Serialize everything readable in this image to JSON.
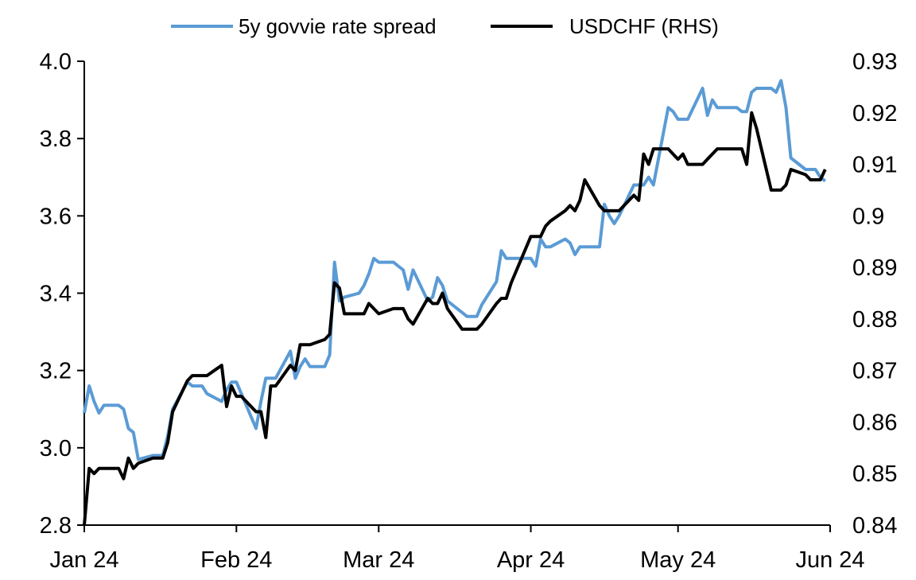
{
  "chart_data": {
    "type": "line",
    "title": "",
    "xlabel": "",
    "ylabel": "",
    "y2label": "",
    "grid": false,
    "legend_placement": "top-center",
    "x_tick_labels": [
      "Jan 24",
      "Feb 24",
      "Mar 24",
      "Apr 24",
      "May 24",
      "Jun 24"
    ],
    "x_tick_dates": [
      "2024-01-01",
      "2024-02-01",
      "2024-03-01",
      "2024-04-01",
      "2024-05-01",
      "2024-06-01"
    ],
    "xlim": [
      "2024-01-01",
      "2024-06-01"
    ],
    "ylim": [
      2.8,
      4.0
    ],
    "y_tick_labels": [
      "2.8",
      "3.0",
      "3.2",
      "3.4",
      "3.6",
      "3.8",
      "4.0"
    ],
    "y2lim": [
      0.84,
      0.93
    ],
    "y2_tick_labels": [
      "0.84",
      "0.85",
      "0.86",
      "0.87",
      "0.88",
      "0.89",
      "0.9",
      "0.91",
      "0.92",
      "0.93"
    ],
    "series": [
      {
        "name": "5y govvie rate spread",
        "axis": "left",
        "color": "#5B9BD5",
        "points": [
          [
            "2024-01-01",
            3.09
          ],
          [
            "2024-01-02",
            3.16
          ],
          [
            "2024-01-03",
            3.12
          ],
          [
            "2024-01-04",
            3.09
          ],
          [
            "2024-01-05",
            3.11
          ],
          [
            "2024-01-08",
            3.11
          ],
          [
            "2024-01-09",
            3.1
          ],
          [
            "2024-01-10",
            3.05
          ],
          [
            "2024-01-11",
            3.04
          ],
          [
            "2024-01-12",
            2.97
          ],
          [
            "2024-01-15",
            2.98
          ],
          [
            "2024-01-16",
            2.98
          ],
          [
            "2024-01-17",
            2.98
          ],
          [
            "2024-01-18",
            3.03
          ],
          [
            "2024-01-19",
            3.1
          ],
          [
            "2024-01-22",
            3.17
          ],
          [
            "2024-01-23",
            3.16
          ],
          [
            "2024-01-24",
            3.16
          ],
          [
            "2024-01-25",
            3.16
          ],
          [
            "2024-01-26",
            3.14
          ],
          [
            "2024-01-29",
            3.12
          ],
          [
            "2024-01-30",
            3.15
          ],
          [
            "2024-01-31",
            3.17
          ],
          [
            "2024-02-01",
            3.17
          ],
          [
            "2024-02-02",
            3.14
          ],
          [
            "2024-02-05",
            3.05
          ],
          [
            "2024-02-06",
            3.12
          ],
          [
            "2024-02-07",
            3.18
          ],
          [
            "2024-02-08",
            3.18
          ],
          [
            "2024-02-09",
            3.18
          ],
          [
            "2024-02-12",
            3.25
          ],
          [
            "2024-02-13",
            3.18
          ],
          [
            "2024-02-14",
            3.21
          ],
          [
            "2024-02-15",
            3.23
          ],
          [
            "2024-02-16",
            3.21
          ],
          [
            "2024-02-19",
            3.21
          ],
          [
            "2024-02-20",
            3.24
          ],
          [
            "2024-02-21",
            3.48
          ],
          [
            "2024-02-22",
            3.38
          ],
          [
            "2024-02-23",
            3.39
          ],
          [
            "2024-02-26",
            3.4
          ],
          [
            "2024-02-27",
            3.42
          ],
          [
            "2024-02-28",
            3.45
          ],
          [
            "2024-02-29",
            3.49
          ],
          [
            "2024-03-01",
            3.48
          ],
          [
            "2024-03-04",
            3.48
          ],
          [
            "2024-03-05",
            3.47
          ],
          [
            "2024-03-06",
            3.46
          ],
          [
            "2024-03-07",
            3.41
          ],
          [
            "2024-03-08",
            3.46
          ],
          [
            "2024-03-11",
            3.38
          ],
          [
            "2024-03-12",
            3.39
          ],
          [
            "2024-03-13",
            3.44
          ],
          [
            "2024-03-14",
            3.42
          ],
          [
            "2024-03-15",
            3.38
          ],
          [
            "2024-03-18",
            3.35
          ],
          [
            "2024-03-19",
            3.34
          ],
          [
            "2024-03-20",
            3.34
          ],
          [
            "2024-03-21",
            3.34
          ],
          [
            "2024-03-22",
            3.37
          ],
          [
            "2024-03-25",
            3.43
          ],
          [
            "2024-03-26",
            3.51
          ],
          [
            "2024-03-27",
            3.49
          ],
          [
            "2024-03-28",
            3.49
          ],
          [
            "2024-04-01",
            3.49
          ],
          [
            "2024-04-02",
            3.47
          ],
          [
            "2024-04-03",
            3.54
          ],
          [
            "2024-04-04",
            3.52
          ],
          [
            "2024-04-05",
            3.52
          ],
          [
            "2024-04-08",
            3.54
          ],
          [
            "2024-04-09",
            3.53
          ],
          [
            "2024-04-10",
            3.5
          ],
          [
            "2024-04-11",
            3.52
          ],
          [
            "2024-04-12",
            3.52
          ],
          [
            "2024-04-15",
            3.52
          ],
          [
            "2024-04-16",
            3.63
          ],
          [
            "2024-04-17",
            3.6
          ],
          [
            "2024-04-18",
            3.58
          ],
          [
            "2024-04-19",
            3.6
          ],
          [
            "2024-04-22",
            3.68
          ],
          [
            "2024-04-23",
            3.68
          ],
          [
            "2024-04-24",
            3.68
          ],
          [
            "2024-04-25",
            3.7
          ],
          [
            "2024-04-26",
            3.68
          ],
          [
            "2024-04-29",
            3.88
          ],
          [
            "2024-04-30",
            3.87
          ],
          [
            "2024-05-01",
            3.85
          ],
          [
            "2024-05-02",
            3.85
          ],
          [
            "2024-05-03",
            3.85
          ],
          [
            "2024-05-06",
            3.93
          ],
          [
            "2024-05-07",
            3.86
          ],
          [
            "2024-05-08",
            3.9
          ],
          [
            "2024-05-09",
            3.88
          ],
          [
            "2024-05-10",
            3.88
          ],
          [
            "2024-05-13",
            3.88
          ],
          [
            "2024-05-14",
            3.87
          ],
          [
            "2024-05-15",
            3.87
          ],
          [
            "2024-05-16",
            3.92
          ],
          [
            "2024-05-17",
            3.93
          ],
          [
            "2024-05-20",
            3.93
          ],
          [
            "2024-05-21",
            3.92
          ],
          [
            "2024-05-22",
            3.95
          ],
          [
            "2024-05-23",
            3.88
          ],
          [
            "2024-05-24",
            3.75
          ],
          [
            "2024-05-27",
            3.72
          ],
          [
            "2024-05-28",
            3.72
          ],
          [
            "2024-05-29",
            3.72
          ],
          [
            "2024-05-30",
            3.7
          ],
          [
            "2024-05-31",
            3.69
          ]
        ]
      },
      {
        "name": "USDCHF (RHS)",
        "axis": "right",
        "color": "#000000",
        "points": [
          [
            "2024-01-01",
            0.84
          ],
          [
            "2024-01-02",
            0.851
          ],
          [
            "2024-01-03",
            0.85
          ],
          [
            "2024-01-04",
            0.851
          ],
          [
            "2024-01-05",
            0.851
          ],
          [
            "2024-01-08",
            0.851
          ],
          [
            "2024-01-09",
            0.849
          ],
          [
            "2024-01-10",
            0.853
          ],
          [
            "2024-01-11",
            0.851
          ],
          [
            "2024-01-12",
            0.852
          ],
          [
            "2024-01-15",
            0.853
          ],
          [
            "2024-01-16",
            0.853
          ],
          [
            "2024-01-17",
            0.853
          ],
          [
            "2024-01-18",
            0.856
          ],
          [
            "2024-01-19",
            0.862
          ],
          [
            "2024-01-22",
            0.868
          ],
          [
            "2024-01-23",
            0.869
          ],
          [
            "2024-01-24",
            0.869
          ],
          [
            "2024-01-25",
            0.869
          ],
          [
            "2024-01-26",
            0.869
          ],
          [
            "2024-01-29",
            0.871
          ],
          [
            "2024-01-30",
            0.863
          ],
          [
            "2024-01-31",
            0.867
          ],
          [
            "2024-02-01",
            0.865
          ],
          [
            "2024-02-02",
            0.865
          ],
          [
            "2024-02-05",
            0.862
          ],
          [
            "2024-02-06",
            0.862
          ],
          [
            "2024-02-07",
            0.857
          ],
          [
            "2024-02-08",
            0.867
          ],
          [
            "2024-02-09",
            0.867
          ],
          [
            "2024-02-12",
            0.871
          ],
          [
            "2024-02-13",
            0.87
          ],
          [
            "2024-02-14",
            0.875
          ],
          [
            "2024-02-15",
            0.875
          ],
          [
            "2024-02-16",
            0.875
          ],
          [
            "2024-02-19",
            0.876
          ],
          [
            "2024-02-20",
            0.877
          ],
          [
            "2024-02-21",
            0.887
          ],
          [
            "2024-02-22",
            0.886
          ],
          [
            "2024-02-23",
            0.881
          ],
          [
            "2024-02-26",
            0.881
          ],
          [
            "2024-02-27",
            0.881
          ],
          [
            "2024-02-28",
            0.883
          ],
          [
            "2024-02-29",
            0.882
          ],
          [
            "2024-03-01",
            0.881
          ],
          [
            "2024-03-04",
            0.882
          ],
          [
            "2024-03-05",
            0.882
          ],
          [
            "2024-03-06",
            0.882
          ],
          [
            "2024-03-07",
            0.88
          ],
          [
            "2024-03-08",
            0.879
          ],
          [
            "2024-03-11",
            0.884
          ],
          [
            "2024-03-12",
            0.883
          ],
          [
            "2024-03-13",
            0.883
          ],
          [
            "2024-03-14",
            0.885
          ],
          [
            "2024-03-15",
            0.882
          ],
          [
            "2024-03-18",
            0.878
          ],
          [
            "2024-03-19",
            0.878
          ],
          [
            "2024-03-20",
            0.878
          ],
          [
            "2024-03-21",
            0.878
          ],
          [
            "2024-03-22",
            0.879
          ],
          [
            "2024-03-25",
            0.883
          ],
          [
            "2024-03-26",
            0.884
          ],
          [
            "2024-03-27",
            0.884
          ],
          [
            "2024-03-28",
            0.887
          ],
          [
            "2024-04-01",
            0.896
          ],
          [
            "2024-04-02",
            0.896
          ],
          [
            "2024-04-03",
            0.896
          ],
          [
            "2024-04-04",
            0.898
          ],
          [
            "2024-04-05",
            0.899
          ],
          [
            "2024-04-08",
            0.901
          ],
          [
            "2024-04-09",
            0.902
          ],
          [
            "2024-04-10",
            0.901
          ],
          [
            "2024-04-11",
            0.903
          ],
          [
            "2024-04-12",
            0.907
          ],
          [
            "2024-04-15",
            0.902
          ],
          [
            "2024-04-16",
            0.901
          ],
          [
            "2024-04-17",
            0.901
          ],
          [
            "2024-04-18",
            0.901
          ],
          [
            "2024-04-19",
            0.901
          ],
          [
            "2024-04-22",
            0.904
          ],
          [
            "2024-04-23",
            0.903
          ],
          [
            "2024-04-24",
            0.912
          ],
          [
            "2024-04-25",
            0.91
          ],
          [
            "2024-04-26",
            0.913
          ],
          [
            "2024-04-29",
            0.913
          ],
          [
            "2024-04-30",
            0.912
          ],
          [
            "2024-05-01",
            0.911
          ],
          [
            "2024-05-02",
            0.912
          ],
          [
            "2024-05-03",
            0.91
          ],
          [
            "2024-05-06",
            0.91
          ],
          [
            "2024-05-07",
            0.911
          ],
          [
            "2024-05-08",
            0.912
          ],
          [
            "2024-05-09",
            0.913
          ],
          [
            "2024-05-10",
            0.913
          ],
          [
            "2024-05-13",
            0.913
          ],
          [
            "2024-05-14",
            0.913
          ],
          [
            "2024-05-15",
            0.91
          ],
          [
            "2024-05-16",
            0.92
          ],
          [
            "2024-05-17",
            0.917
          ],
          [
            "2024-05-20",
            0.905
          ],
          [
            "2024-05-21",
            0.905
          ],
          [
            "2024-05-22",
            0.905
          ],
          [
            "2024-05-23",
            0.906
          ],
          [
            "2024-05-24",
            0.909
          ],
          [
            "2024-05-27",
            0.908
          ],
          [
            "2024-05-28",
            0.907
          ],
          [
            "2024-05-29",
            0.907
          ],
          [
            "2024-05-30",
            0.907
          ],
          [
            "2024-05-31",
            0.909
          ]
        ]
      }
    ]
  }
}
